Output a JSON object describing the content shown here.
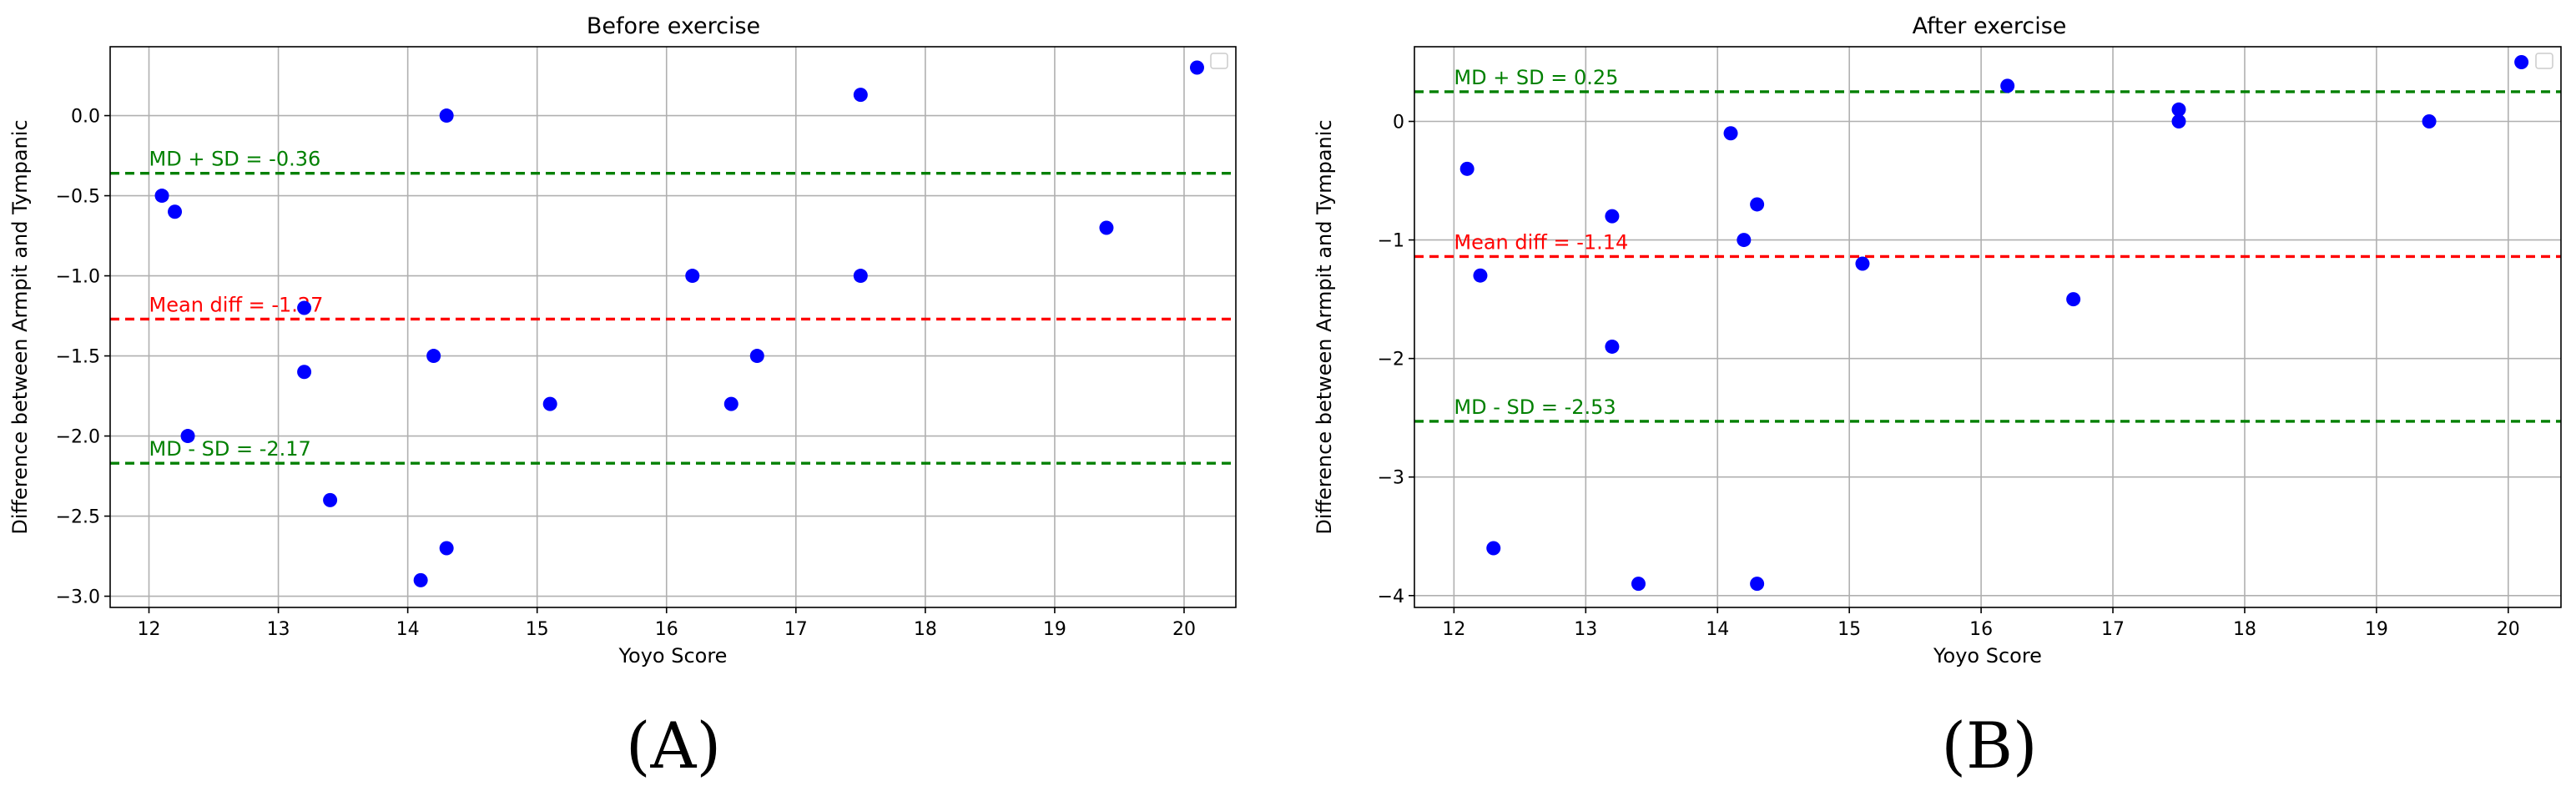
{
  "chart_data": [
    {
      "type": "scatter",
      "title": "Before exercise",
      "xlabel": "Yoyo Score",
      "ylabel": "Difference between Armpit and Tympanic",
      "xlim": [
        11.7,
        20.4
      ],
      "ylim": [
        -3.07,
        0.43
      ],
      "xticks": [
        12,
        13,
        14,
        15,
        16,
        17,
        18,
        19,
        20
      ],
      "yticks": [
        0.0,
        -0.5,
        -1.0,
        -1.5,
        -2.0,
        -2.5,
        -3.0
      ],
      "xtick_labels": [
        "12",
        "13",
        "14",
        "15",
        "16",
        "17",
        "18",
        "19",
        "20"
      ],
      "ytick_labels": [
        "0.0",
        "−0.5",
        "−1.0",
        "−1.5",
        "−2.0",
        "−2.5",
        "−3.0"
      ],
      "grid": true,
      "legend": "top-right (empty)",
      "points_color": "#0000ff",
      "points": [
        {
          "x": 12.1,
          "y": -0.5
        },
        {
          "x": 12.2,
          "y": -0.6
        },
        {
          "x": 12.3,
          "y": -2.0
        },
        {
          "x": 13.2,
          "y": -1.2
        },
        {
          "x": 13.2,
          "y": -1.6
        },
        {
          "x": 13.4,
          "y": -2.4
        },
        {
          "x": 14.1,
          "y": -2.9
        },
        {
          "x": 14.2,
          "y": -1.5
        },
        {
          "x": 14.3,
          "y": 0.0
        },
        {
          "x": 14.3,
          "y": -2.7
        },
        {
          "x": 15.1,
          "y": -1.8
        },
        {
          "x": 16.2,
          "y": -1.0
        },
        {
          "x": 16.5,
          "y": -1.8
        },
        {
          "x": 16.7,
          "y": -1.5
        },
        {
          "x": 17.5,
          "y": 0.13
        },
        {
          "x": 17.5,
          "y": -1.0
        },
        {
          "x": 19.4,
          "y": -0.7
        },
        {
          "x": 20.1,
          "y": 0.3
        }
      ],
      "lines": [
        {
          "y": -0.36,
          "color": "#008000",
          "label": "MD + SD = -0.36"
        },
        {
          "y": -1.27,
          "color": "#ff0000",
          "label": "Mean diff = -1.27"
        },
        {
          "y": -2.17,
          "color": "#008000",
          "label": "MD - SD = -2.17"
        }
      ],
      "panel_label": "(A)"
    },
    {
      "type": "scatter",
      "title": "After exercise",
      "xlabel": "Yoyo Score",
      "ylabel": "Difference between Armpit and Tympanic",
      "xlim": [
        11.7,
        20.4
      ],
      "ylim": [
        -4.1,
        0.63
      ],
      "xticks": [
        12,
        13,
        14,
        15,
        16,
        17,
        18,
        19,
        20
      ],
      "yticks": [
        0,
        -1,
        -2,
        -3,
        -4
      ],
      "xtick_labels": [
        "12",
        "13",
        "14",
        "15",
        "16",
        "17",
        "18",
        "19",
        "20"
      ],
      "ytick_labels": [
        "0",
        "−1",
        "−2",
        "−3",
        "−4"
      ],
      "grid": true,
      "legend": "top-right (empty)",
      "points_color": "#0000ff",
      "points": [
        {
          "x": 12.1,
          "y": -0.4
        },
        {
          "x": 12.2,
          "y": -1.3
        },
        {
          "x": 12.3,
          "y": -3.6
        },
        {
          "x": 13.2,
          "y": -0.8
        },
        {
          "x": 13.2,
          "y": -1.9
        },
        {
          "x": 13.4,
          "y": -3.9
        },
        {
          "x": 14.1,
          "y": -0.1
        },
        {
          "x": 14.2,
          "y": -1.0
        },
        {
          "x": 14.3,
          "y": -0.7
        },
        {
          "x": 14.3,
          "y": -3.9
        },
        {
          "x": 15.1,
          "y": -1.2
        },
        {
          "x": 16.2,
          "y": 0.3
        },
        {
          "x": 16.7,
          "y": -1.5
        },
        {
          "x": 17.5,
          "y": 0.1
        },
        {
          "x": 17.5,
          "y": 0.0
        },
        {
          "x": 19.4,
          "y": 0.0
        },
        {
          "x": 20.1,
          "y": 0.5
        }
      ],
      "lines": [
        {
          "y": 0.25,
          "color": "#008000",
          "label": "MD + SD = 0.25"
        },
        {
          "y": -1.14,
          "color": "#ff0000",
          "label": "Mean diff = -1.14"
        },
        {
          "y": -2.53,
          "color": "#008000",
          "label": "MD - SD = -2.53"
        }
      ],
      "panel_label": "(B)"
    }
  ]
}
